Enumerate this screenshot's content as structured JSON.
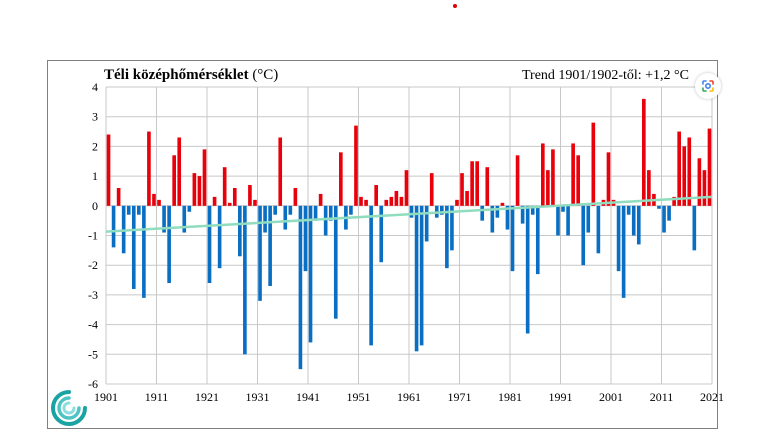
{
  "chart_data": {
    "type": "bar",
    "title": "Téli középhőmérséklet",
    "unit_label": "(°C)",
    "trend_label": "Trend 1901/1902-től: +1,2 °C",
    "x_tick_labels": [
      "1901",
      "1911",
      "1921",
      "1931",
      "1941",
      "1951",
      "1961",
      "1971",
      "1981",
      "1991",
      "2001",
      "2011",
      "2021"
    ],
    "y_tick_labels": [
      "4",
      "3",
      "2",
      "1",
      "0",
      "-1",
      "-2",
      "-3",
      "-4",
      "-5",
      "-6"
    ],
    "ylim": [
      -6,
      4
    ],
    "xlim": [
      1901,
      2021
    ],
    "grid": true,
    "years_start": 1902,
    "values": [
      2.4,
      -1.4,
      0.6,
      -1.6,
      -0.3,
      -2.8,
      -0.3,
      -3.1,
      2.5,
      0.4,
      0.2,
      -0.9,
      -2.6,
      1.7,
      2.3,
      -0.9,
      -0.2,
      1.1,
      1.0,
      1.9,
      -2.6,
      0.3,
      -2.1,
      1.3,
      0.1,
      0.6,
      -1.7,
      -5.0,
      0.7,
      0.2,
      -3.2,
      -0.9,
      -2.7,
      -0.3,
      2.3,
      -0.8,
      -0.3,
      0.6,
      -5.5,
      -2.2,
      -4.6,
      -0.5,
      0.4,
      -1.0,
      -0.5,
      -3.8,
      1.8,
      -0.8,
      -0.3,
      2.7,
      0.3,
      0.2,
      -4.7,
      0.7,
      -1.9,
      0.2,
      0.3,
      0.5,
      0.3,
      1.2,
      -0.4,
      -4.9,
      -4.7,
      -1.2,
      1.1,
      -0.4,
      -0.3,
      -2.1,
      -1.5,
      0.2,
      1.1,
      0.5,
      1.5,
      1.5,
      -0.5,
      1.3,
      -0.9,
      -0.4,
      0.1,
      -0.8,
      -2.2,
      1.7,
      -0.6,
      -4.3,
      -0.3,
      -2.3,
      2.1,
      1.2,
      1.9,
      -1.0,
      -0.2,
      -1.0,
      2.1,
      1.7,
      -2.0,
      -0.9,
      2.8,
      -1.6,
      0.2,
      1.8,
      0.2,
      -2.2,
      -3.1,
      -0.3,
      -1.0,
      -1.3,
      3.6,
      1.2,
      0.4,
      -0.1,
      -0.9,
      -0.5,
      0.3,
      2.5,
      2.0,
      2.3,
      -1.5,
      1.6,
      1.2,
      2.6
    ],
    "trend": {
      "start": -0.87,
      "end": 0.3
    },
    "colors": {
      "positive": "#e8000b",
      "negative": "#0a6fc2",
      "trend": "#8fdcbf",
      "grid": "#c8c8c8",
      "frame": "#808080"
    }
  },
  "icons": {
    "lens": "google-lens-icon",
    "logo": "omsz-logo-icon",
    "marker": "red-dot-marker"
  }
}
